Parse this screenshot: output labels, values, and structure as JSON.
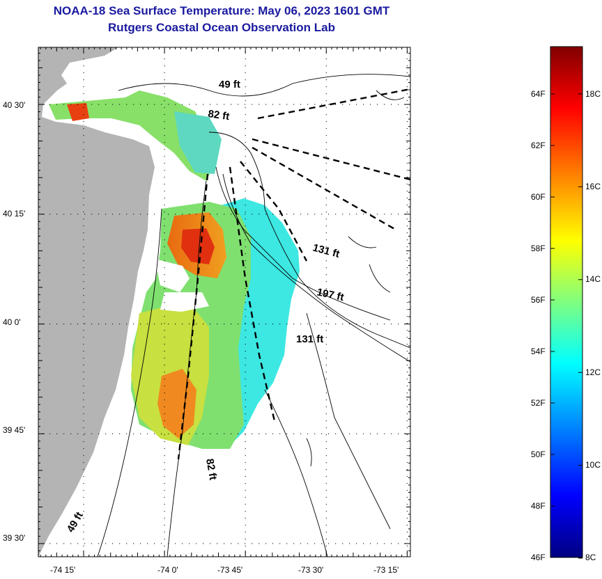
{
  "title": {
    "line1": "NOAA-18 Sea Surface Temperature:  May 06, 2023 1601 GMT",
    "line2": "Rutgers Coastal Ocean Observation Lab"
  },
  "axes": {
    "lat_labels": [
      {
        "text": "40 30'",
        "lat": 40.5
      },
      {
        "text": "40 15'",
        "lat": 40.25
      },
      {
        "text": "40 0'",
        "lat": 40.0
      },
      {
        "text": "39 45'",
        "lat": 39.75
      },
      {
        "text": "39 30'",
        "lat": 39.5
      }
    ],
    "lon_labels": [
      {
        "text": "-74 15'",
        "lon": -74.25
      },
      {
        "text": "-74 0'",
        "lon": -74.0
      },
      {
        "text": "-73 45'",
        "lon": -73.75
      },
      {
        "text": "-73 30'",
        "lon": -73.5
      },
      {
        "text": "-73 15'",
        "lon": -73.25
      }
    ],
    "lat_range": [
      39.47,
      40.63
    ],
    "lon_range": [
      -74.39,
      -73.24
    ]
  },
  "depth_contours": [
    {
      "text": "49 ft"
    },
    {
      "text": "82 ft"
    },
    {
      "text": "131 ft"
    },
    {
      "text": "197 ft"
    },
    {
      "text": "131 ft"
    },
    {
      "text": "82 ft"
    },
    {
      "text": "49 ft"
    }
  ],
  "colorbar": {
    "f_labels": [
      "64F",
      "62F",
      "60F",
      "58F",
      "56F",
      "54F",
      "52F",
      "50F",
      "48F",
      "46F"
    ],
    "c_labels": [
      "18C",
      "16C",
      "14C",
      "12C",
      "10C",
      "8C"
    ],
    "colors": {
      "bottom": "#000080",
      "low": "#0000ff",
      "cyan": "#00ffff",
      "yellow": "#ffff00",
      "red": "#ff0000",
      "top": "#800000"
    }
  },
  "colors": {
    "land": "#b4b4b4",
    "title": "#1a1aa0"
  }
}
